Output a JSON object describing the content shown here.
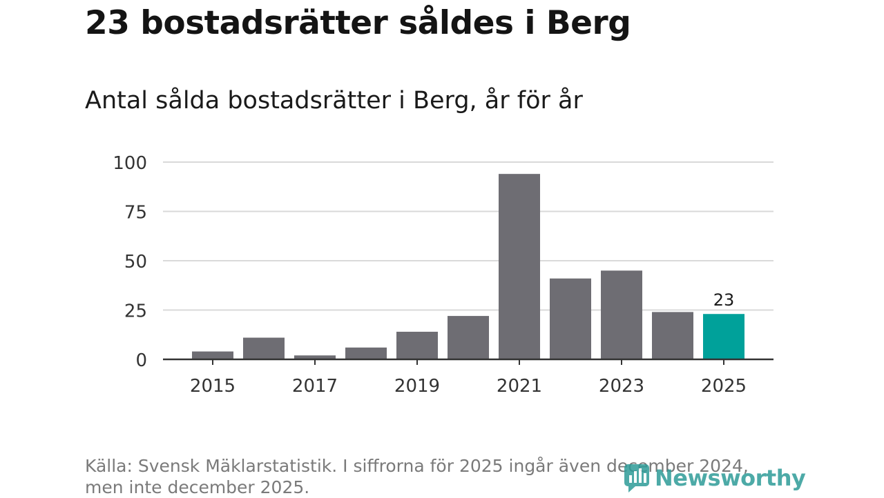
{
  "header": {
    "title": "23 bostadsrätter såldes i Berg",
    "subtitle": "Antal sålda bostadsrätter i Berg, år för år"
  },
  "footer": {
    "source_line1": "Källa: Svensk Mäklarstatistik. I siffrorna för 2025 ingår även december 2024,",
    "source_line2": "men inte december 2025.",
    "logo_text": "Newsworthy"
  },
  "colors": {
    "bar": "#6e6d73",
    "highlight_bar": "#00a19a",
    "grid": "#d9d9d9",
    "axis": "#333333",
    "logo": "#2f9c98"
  },
  "chart_data": {
    "type": "bar",
    "title": "Antal sålda bostadsrätter i Berg, år för år",
    "xlabel": "",
    "ylabel": "",
    "categories": [
      "2015",
      "2016",
      "2017",
      "2018",
      "2019",
      "2020",
      "2021",
      "2022",
      "2023",
      "2024",
      "2025"
    ],
    "values": [
      4,
      11,
      2,
      6,
      14,
      22,
      94,
      41,
      45,
      24,
      23
    ],
    "highlight_index": 10,
    "highlight_label": "23",
    "ylim": [
      0,
      100
    ],
    "yticks": [
      0,
      25,
      50,
      75,
      100
    ],
    "xtick_labels": [
      "2015",
      "2017",
      "2019",
      "2021",
      "2023",
      "2025"
    ],
    "grid": true
  }
}
